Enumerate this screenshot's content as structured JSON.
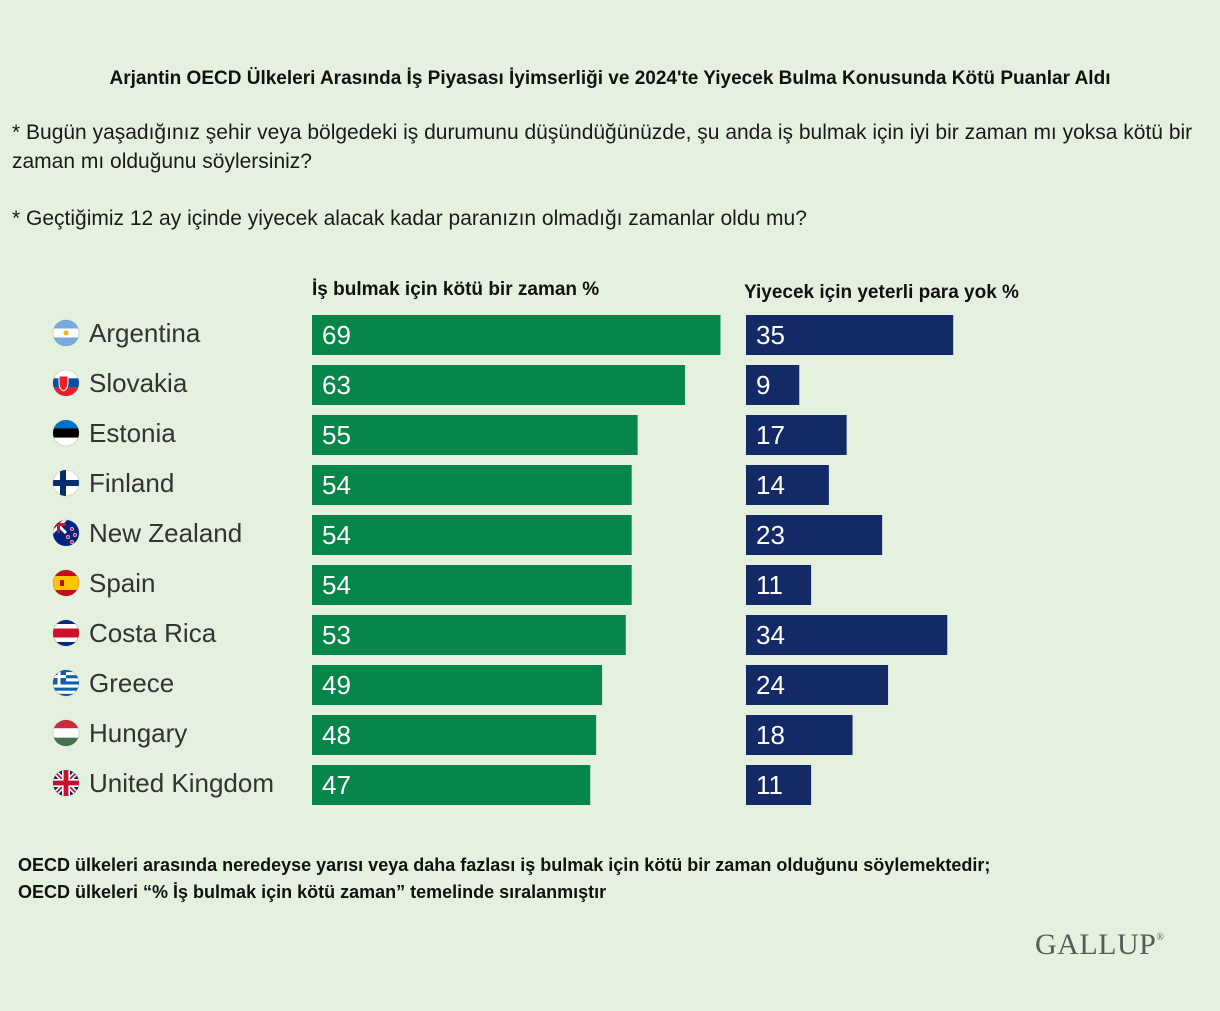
{
  "title": "Arjantin OECD Ülkeleri Arasında İş Piyasası İyimserliği ve 2024'te Yiyecek Bulma Konusunda Kötü Puanlar Aldı",
  "question1": "* Bugün yaşadığınız şehir veya bölgedeki iş durumunu düşündüğünüzde, şu anda iş bulmak için iyi bir zaman mı yoksa kötü bir zaman mı olduğunu söylersiniz?",
  "question2": "* Geçtiğimiz 12 ay içinde yiyecek alacak kadar paranızın olmadığı zamanlar oldu mu?",
  "footer_line1": "OECD ülkeleri arasında neredeyse yarısı veya daha fazlası iş bulmak için kötü bir zaman olduğunu söylemektedir;",
  "footer_line2": "OECD ülkeleri “% İş bulmak için kötü zaman” temelinde sıralanmıştır",
  "logo": "GALLUP",
  "colors": {
    "green": "#07864a",
    "navy": "#142a66",
    "background": "#e5f1df"
  },
  "chart_data": {
    "type": "bar",
    "orientation": "horizontal",
    "categories": [
      "Argentina",
      "Slovakia",
      "Estonia",
      "Finland",
      "New Zealand",
      "Spain",
      "Costa Rica",
      "Greece",
      "Hungary",
      "United Kingdom"
    ],
    "flag_icons": [
      "argentina-flag-icon",
      "slovakia-flag-icon",
      "estonia-flag-icon",
      "finland-flag-icon",
      "new-zealand-flag-icon",
      "spain-flag-icon",
      "costa-rica-flag-icon",
      "greece-flag-icon",
      "hungary-flag-icon",
      "united-kingdom-flag-icon"
    ],
    "series": [
      {
        "name": "İş bulmak için kötü bir zaman %",
        "color": "#07864a",
        "values": [
          69,
          63,
          55,
          54,
          54,
          54,
          53,
          49,
          48,
          47
        ]
      },
      {
        "name": "Yiyecek için yeterli para yok %",
        "color": "#142a66",
        "values": [
          35,
          9,
          17,
          14,
          23,
          11,
          34,
          24,
          18,
          11
        ]
      }
    ],
    "xlim": [
      0,
      100
    ],
    "data_labels": true,
    "grid": false
  }
}
